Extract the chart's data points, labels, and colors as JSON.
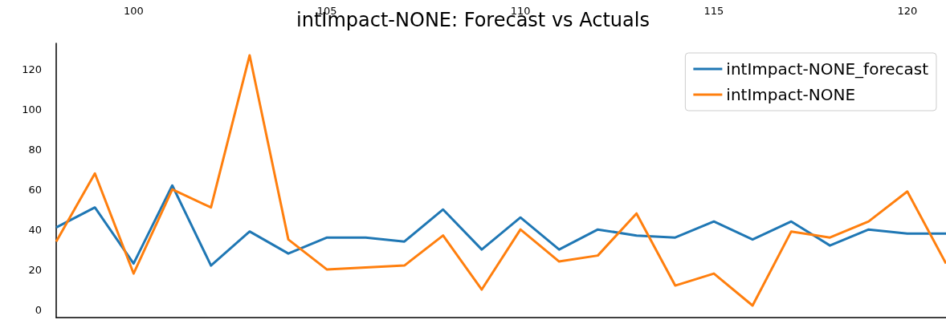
{
  "chart_data": {
    "type": "line",
    "title": "intImpact-NONE: Forecast vs Actuals",
    "x": [
      98,
      99,
      100,
      101,
      102,
      103,
      104,
      105,
      106,
      107,
      108,
      109,
      110,
      111,
      112,
      113,
      114,
      115,
      116,
      117,
      118,
      119,
      120,
      121
    ],
    "series": [
      {
        "name": "intImpact-NONE_forecast",
        "color": "#1f77b4",
        "values": [
          41,
          51,
          23,
          62,
          22,
          39,
          28,
          36,
          36,
          34,
          50,
          30,
          46,
          30,
          40,
          37,
          36,
          44,
          35,
          44,
          32,
          40,
          38,
          38
        ]
      },
      {
        "name": "intImpact-NONE",
        "color": "#ff7f0e",
        "values": [
          34,
          68,
          18,
          60,
          51,
          127,
          35,
          20,
          21,
          22,
          37,
          10,
          40,
          24,
          27,
          48,
          12,
          18,
          2,
          39,
          36,
          44,
          59,
          23
        ]
      }
    ],
    "xlim": [
      98,
      121
    ],
    "xticks": [
      100,
      105,
      110,
      115,
      120
    ],
    "ylim": [
      -4,
      133
    ],
    "yticks": [
      0,
      20,
      40,
      60,
      80,
      100,
      120
    ],
    "grid": false,
    "legend": "top right",
    "marker": "none",
    "line_style": "solid"
  }
}
